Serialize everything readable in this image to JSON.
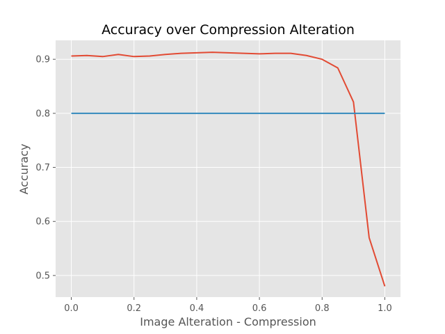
{
  "chart_data": {
    "type": "line",
    "title": "Accuracy over Compression Alteration",
    "xlabel": "Image Alteration - Compression",
    "ylabel": "Accuracy",
    "xlim": [
      -0.05,
      1.05
    ],
    "ylim": [
      0.46,
      0.935
    ],
    "grid": true,
    "x_ticks": [
      0.0,
      0.2,
      0.4,
      0.6,
      0.8,
      1.0
    ],
    "x_tick_labels": [
      "0.0",
      "0.2",
      "0.4",
      "0.6",
      "0.8",
      "1.0"
    ],
    "y_ticks": [
      0.5,
      0.6,
      0.7,
      0.8,
      0.9
    ],
    "y_tick_labels": [
      "0.5",
      "0.6",
      "0.7",
      "0.8",
      "0.9"
    ],
    "series": [
      {
        "color": "#E24A33",
        "x": [
          0.0,
          0.05,
          0.1,
          0.15,
          0.2,
          0.25,
          0.3,
          0.35,
          0.4,
          0.45,
          0.5,
          0.55,
          0.6,
          0.65,
          0.7,
          0.75,
          0.8,
          0.85,
          0.9,
          0.95,
          1.0
        ],
        "y": [
          0.906,
          0.907,
          0.905,
          0.909,
          0.905,
          0.906,
          0.909,
          0.911,
          0.912,
          0.913,
          0.912,
          0.911,
          0.91,
          0.911,
          0.911,
          0.907,
          0.9,
          0.884,
          0.821,
          0.57,
          0.48
        ]
      },
      {
        "color": "#348ABD",
        "x": [
          0.0,
          1.0
        ],
        "y": [
          0.8,
          0.8
        ]
      }
    ]
  }
}
